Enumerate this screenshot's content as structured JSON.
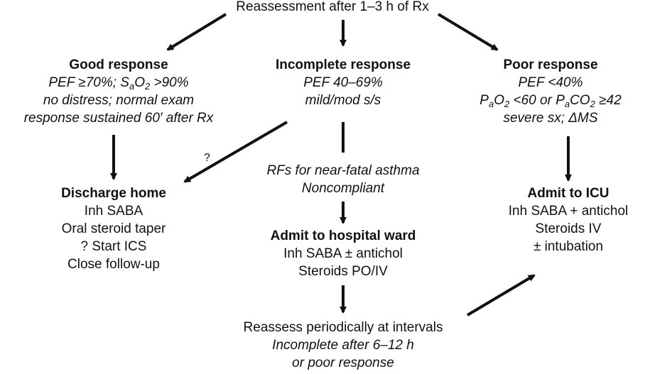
{
  "top": {
    "label": "Reassessment after 1–3 h of Rx"
  },
  "good": {
    "title": "Good response",
    "pef": "PEF ≥70%; S",
    "sao2_sub_a": "a",
    "sao2_o": "O",
    "sao2_sub_2": "2",
    "sao2_val": " >90%",
    "line2": "no distress; normal exam",
    "line3": "response sustained 60′ after Rx"
  },
  "incomplete": {
    "title": "Incomplete response",
    "line1": "PEF 40–69%",
    "line2": "mild/mod s/s"
  },
  "poor": {
    "title": "Poor response",
    "line1": "PEF <40%",
    "p1": "P",
    "p1_sub": "a",
    "p1_rest": "O",
    "p1_sub2": "2",
    "p1_val": " <60 or P",
    "p2_sub": "a",
    "p2_rest": "CO",
    "p2_sub2": "2",
    "p2_val": " ≥42",
    "line3": "severe sx; ΔMS"
  },
  "question_mark": "?",
  "risk_factors": {
    "line1": "RFs for near-fatal asthma",
    "line2": "Noncompliant"
  },
  "discharge": {
    "title": "Discharge home",
    "items": [
      "Inh SABA",
      "Oral steroid taper",
      "? Start ICS",
      "Close follow-up"
    ]
  },
  "ward": {
    "title": "Admit to hospital ward",
    "items": [
      "Inh SABA ± antichol",
      "Steroids PO/IV"
    ]
  },
  "icu": {
    "title": "Admit to ICU",
    "items": [
      "Inh SABA + antichol",
      "Steroids IV",
      "± intubation"
    ]
  },
  "reassess": {
    "line1": "Reassess periodically at intervals",
    "line2": "Incomplete after 6–12 h",
    "line3": "or poor response"
  }
}
